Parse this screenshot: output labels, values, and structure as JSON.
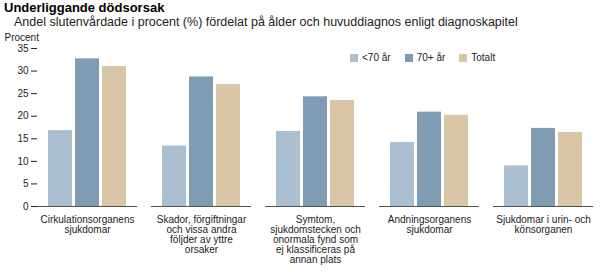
{
  "chart_data": {
    "type": "bar",
    "title": "Underliggande dödsorsak",
    "subtitle": "Andel slutenvårdade i procent (%) fördelat på ålder och huvuddiagnos enligt diagnoskapitel",
    "y_label": "Procent",
    "categories": [
      "Cirkulationsorganens\nsjukdomar",
      "Skador, förgiftningar\noch vissa andra\nföljder av yttre\norsaker",
      "Symtom,\nsjukdomstecken och\nonormala fynd som\nej klassificeras på\nannan plats",
      "Andningsorganens\nsjukdomar",
      "Sjukdomar i urin- och\nkönsorganen"
    ],
    "series": [
      {
        "name": "<70 år",
        "color": "#aabfcf",
        "values": [
          16.8,
          13.4,
          16.6,
          14.2,
          9.0
        ]
      },
      {
        "name": "70+ år",
        "color": "#7f9cb2",
        "values": [
          32.7,
          28.7,
          24.3,
          20.9,
          17.3
        ]
      },
      {
        "name": "Totalt",
        "color": "#d8c6a4",
        "values": [
          31.0,
          27.0,
          23.5,
          20.2,
          16.4
        ]
      }
    ],
    "ylim": [
      0,
      35
    ],
    "yticks": [
      0,
      5,
      10,
      15,
      20,
      25,
      30,
      35
    ],
    "grid": false,
    "legend": "top-right"
  }
}
